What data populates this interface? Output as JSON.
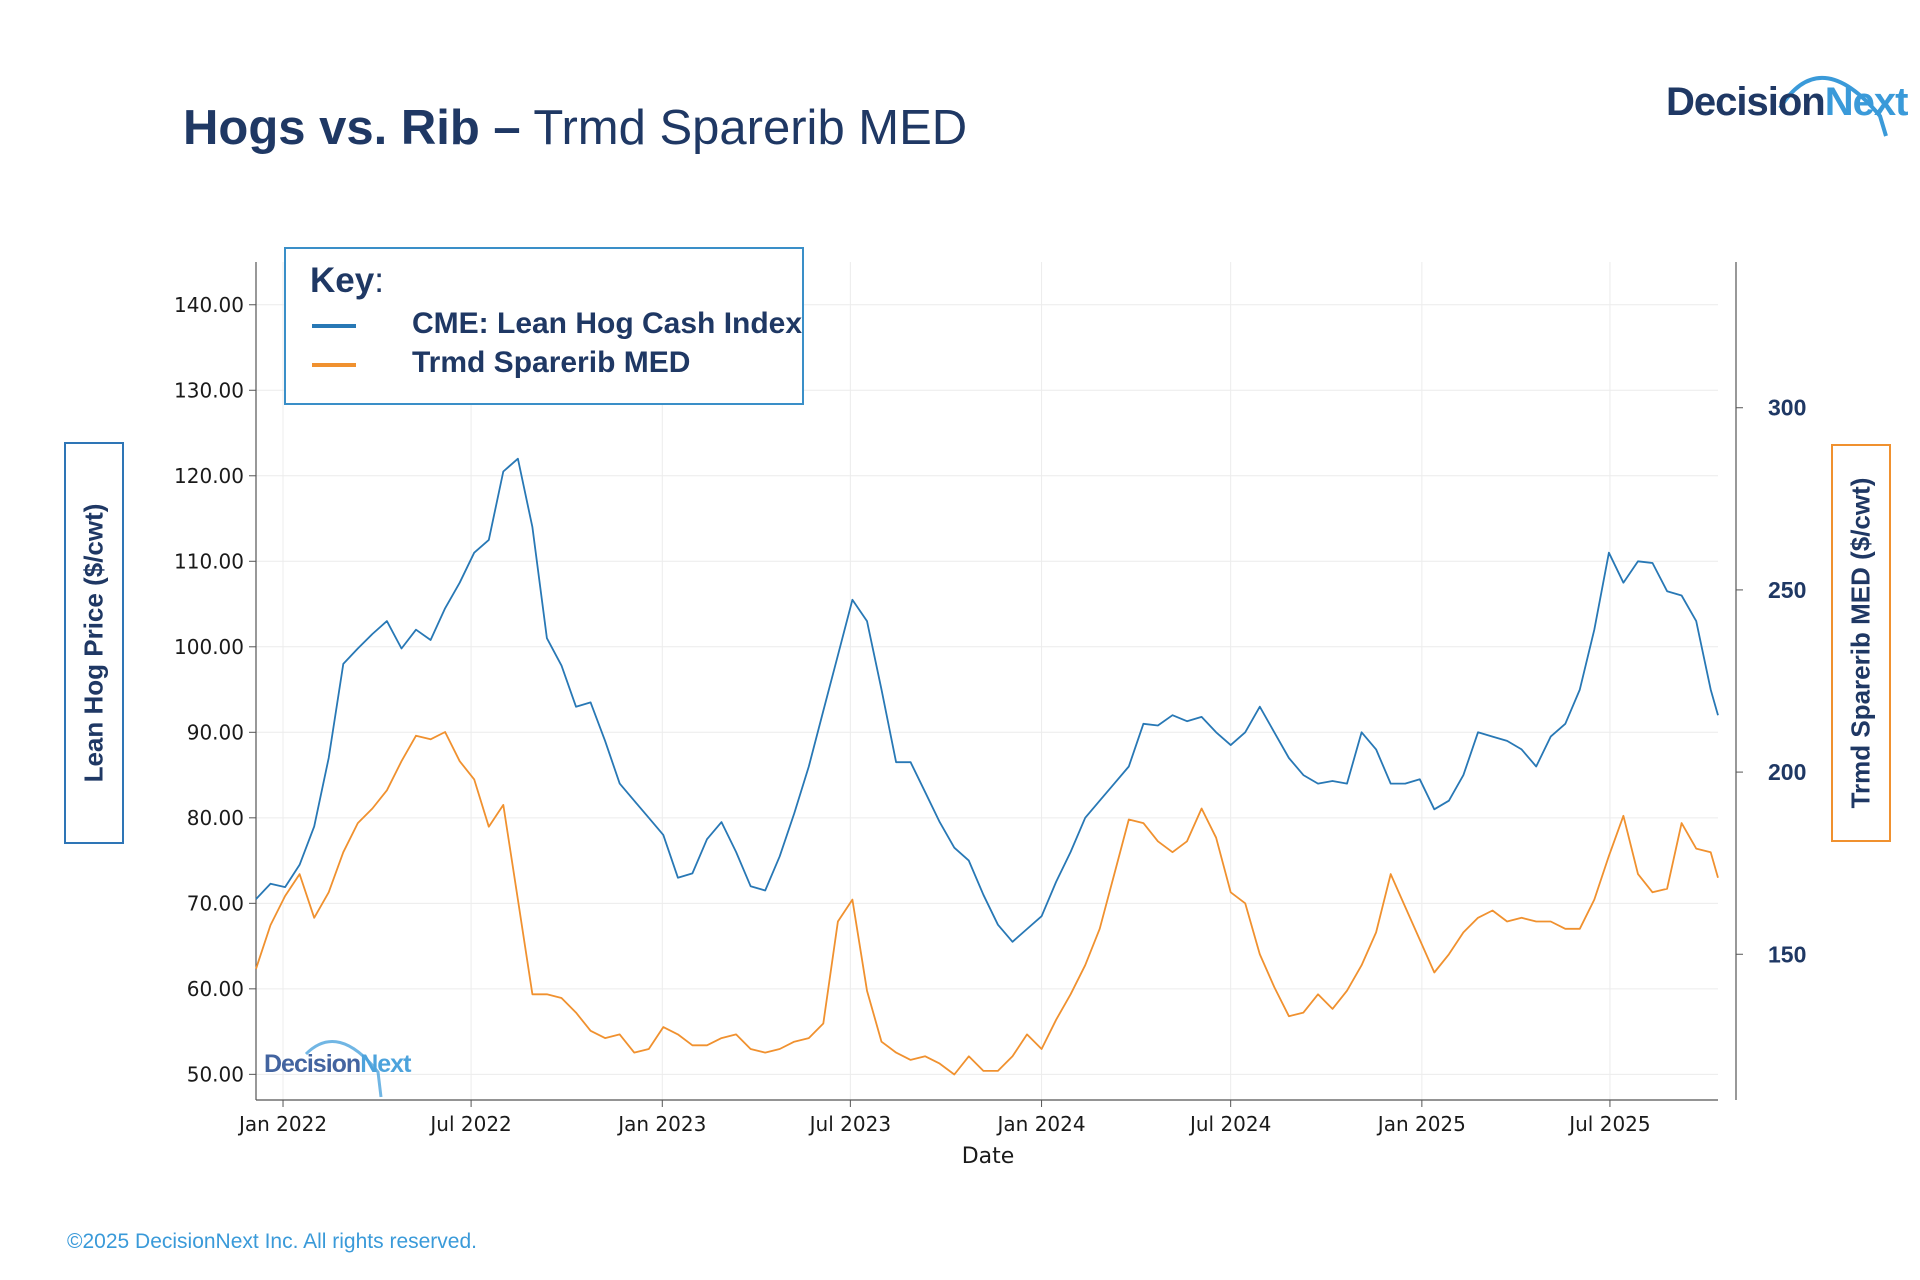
{
  "title": {
    "bold": "Hogs vs. Rib –",
    "regular": "Trmd Sparerib MED"
  },
  "logo": {
    "part1": "Decision",
    "part2": "Next"
  },
  "watermark": {
    "part1": "Decision",
    "part2": "Next"
  },
  "copyright": "©2025 DecisionNext Inc. All rights reserved.",
  "legend": {
    "title": "Key",
    "colon": ":",
    "items": [
      {
        "label": "CME: Lean Hog Cash Index",
        "color": "#2878b5"
      },
      {
        "label": "Trmd Sparerib MED",
        "color": "#f0912f"
      }
    ]
  },
  "axes": {
    "left_label": "Lean Hog Price  ($/cwt)",
    "right_label": "Trmd Sparerib MED  ($/cwt)"
  },
  "chart_data": {
    "type": "line",
    "xlabel": "Date",
    "x_ticks": [
      "Jan 2022",
      "Jul 2022",
      "Jan 2023",
      "Jul 2023",
      "Jan 2024",
      "Jul 2024",
      "Jan 2025",
      "Jul 2025"
    ],
    "x_range": [
      "2021-12-06",
      "2025-10-13"
    ],
    "ylim_left": [
      47,
      145
    ],
    "ylim_right": [
      110,
      340
    ],
    "y_ticks_left": [
      50,
      60,
      70,
      80,
      90,
      100,
      110,
      120,
      130,
      140
    ],
    "y_ticks_left_labels": [
      "50.00",
      "60.00",
      "70.00",
      "80.00",
      "90.00",
      "100.00",
      "110.00",
      "120.00",
      "130.00",
      "140.00"
    ],
    "y_ticks_right": [
      150,
      200,
      250,
      300
    ],
    "y_ticks_right_labels": [
      "150",
      "200",
      "250",
      "300"
    ],
    "grid": true,
    "legend_position": "top-left",
    "series": [
      {
        "name": "CME: Lean Hog Cash Index",
        "axis": "left",
        "color": "#2878b5",
        "points": [
          [
            "2021-12-06",
            70.5
          ],
          [
            "2021-12-20",
            72.3
          ],
          [
            "2022-01-03",
            71.9
          ],
          [
            "2022-01-17",
            74.5
          ],
          [
            "2022-01-31",
            79.0
          ],
          [
            "2022-02-14",
            87.0
          ],
          [
            "2022-02-28",
            98.0
          ],
          [
            "2022-03-14",
            99.8
          ],
          [
            "2022-03-28",
            101.5
          ],
          [
            "2022-04-11",
            103.0
          ],
          [
            "2022-04-25",
            99.8
          ],
          [
            "2022-05-09",
            102.0
          ],
          [
            "2022-05-23",
            100.8
          ],
          [
            "2022-06-06",
            104.5
          ],
          [
            "2022-06-20",
            107.5
          ],
          [
            "2022-07-04",
            111.0
          ],
          [
            "2022-07-18",
            112.5
          ],
          [
            "2022-08-01",
            120.5
          ],
          [
            "2022-08-15",
            122.0
          ],
          [
            "2022-08-29",
            114.0
          ],
          [
            "2022-09-12",
            101.0
          ],
          [
            "2022-09-26",
            97.8
          ],
          [
            "2022-10-10",
            93.0
          ],
          [
            "2022-10-24",
            93.5
          ],
          [
            "2022-11-07",
            89.0
          ],
          [
            "2022-11-21",
            84.0
          ],
          [
            "2022-12-05",
            82.0
          ],
          [
            "2022-12-19",
            80.0
          ],
          [
            "2023-01-02",
            78.0
          ],
          [
            "2023-01-16",
            73.0
          ],
          [
            "2023-01-30",
            73.5
          ],
          [
            "2023-02-13",
            77.5
          ],
          [
            "2023-02-27",
            79.5
          ],
          [
            "2023-03-13",
            76.0
          ],
          [
            "2023-03-27",
            72.0
          ],
          [
            "2023-04-10",
            71.5
          ],
          [
            "2023-04-24",
            75.5
          ],
          [
            "2023-05-08",
            80.5
          ],
          [
            "2023-05-22",
            86.0
          ],
          [
            "2023-06-05",
            92.5
          ],
          [
            "2023-06-19",
            99.0
          ],
          [
            "2023-07-03",
            105.5
          ],
          [
            "2023-07-17",
            103.0
          ],
          [
            "2023-07-31",
            95.0
          ],
          [
            "2023-08-14",
            86.5
          ],
          [
            "2023-08-28",
            86.5
          ],
          [
            "2023-09-11",
            83.0
          ],
          [
            "2023-09-25",
            79.5
          ],
          [
            "2023-10-09",
            76.5
          ],
          [
            "2023-10-23",
            75.0
          ],
          [
            "2023-11-06",
            71.0
          ],
          [
            "2023-11-20",
            67.5
          ],
          [
            "2023-12-04",
            65.5
          ],
          [
            "2023-12-18",
            67.0
          ],
          [
            "2024-01-01",
            68.5
          ],
          [
            "2024-01-15",
            72.5
          ],
          [
            "2024-01-29",
            76.0
          ],
          [
            "2024-02-12",
            80.0
          ],
          [
            "2024-02-26",
            82.0
          ],
          [
            "2024-03-11",
            84.0
          ],
          [
            "2024-03-25",
            86.0
          ],
          [
            "2024-04-08",
            91.0
          ],
          [
            "2024-04-22",
            90.8
          ],
          [
            "2024-05-06",
            92.0
          ],
          [
            "2024-05-20",
            91.3
          ],
          [
            "2024-06-03",
            91.8
          ],
          [
            "2024-06-17",
            90.0
          ],
          [
            "2024-07-01",
            88.5
          ],
          [
            "2024-07-15",
            90.0
          ],
          [
            "2024-07-29",
            93.0
          ],
          [
            "2024-08-12",
            90.0
          ],
          [
            "2024-08-26",
            87.0
          ],
          [
            "2024-09-09",
            85.0
          ],
          [
            "2024-09-23",
            84.0
          ],
          [
            "2024-10-07",
            84.3
          ],
          [
            "2024-10-21",
            84.0
          ],
          [
            "2024-11-04",
            90.0
          ],
          [
            "2024-11-18",
            88.0
          ],
          [
            "2024-12-02",
            84.0
          ],
          [
            "2024-12-16",
            84.0
          ],
          [
            "2024-12-30",
            84.5
          ],
          [
            "2025-01-13",
            81.0
          ],
          [
            "2025-01-27",
            82.0
          ],
          [
            "2025-02-10",
            85.0
          ],
          [
            "2025-02-24",
            90.0
          ],
          [
            "2025-03-10",
            89.5
          ],
          [
            "2025-03-24",
            89.0
          ],
          [
            "2025-04-07",
            88.0
          ],
          [
            "2025-04-21",
            86.0
          ],
          [
            "2025-05-05",
            89.5
          ],
          [
            "2025-05-19",
            91.0
          ],
          [
            "2025-06-02",
            95.0
          ],
          [
            "2025-06-16",
            102.0
          ],
          [
            "2025-06-30",
            111.0
          ],
          [
            "2025-07-14",
            107.5
          ],
          [
            "2025-07-28",
            110.0
          ],
          [
            "2025-08-11",
            109.8
          ],
          [
            "2025-08-25",
            106.5
          ],
          [
            "2025-09-08",
            106.0
          ],
          [
            "2025-09-22",
            103.0
          ],
          [
            "2025-10-06",
            95.0
          ],
          [
            "2025-10-13",
            92.0
          ]
        ]
      },
      {
        "name": "Trmd Sparerib MED",
        "axis": "right",
        "color": "#f0912f",
        "points": [
          [
            "2021-12-06",
            146
          ],
          [
            "2021-12-20",
            158
          ],
          [
            "2022-01-03",
            166
          ],
          [
            "2022-01-17",
            172
          ],
          [
            "2022-01-31",
            160
          ],
          [
            "2022-02-14",
            167
          ],
          [
            "2022-02-28",
            178
          ],
          [
            "2022-03-14",
            186
          ],
          [
            "2022-03-28",
            190
          ],
          [
            "2022-04-11",
            195
          ],
          [
            "2022-04-25",
            203
          ],
          [
            "2022-05-09",
            210
          ],
          [
            "2022-05-23",
            209
          ],
          [
            "2022-06-06",
            211
          ],
          [
            "2022-06-20",
            203
          ],
          [
            "2022-07-04",
            198
          ],
          [
            "2022-07-18",
            185
          ],
          [
            "2022-08-01",
            191
          ],
          [
            "2022-08-15",
            165
          ],
          [
            "2022-08-29",
            139
          ],
          [
            "2022-09-12",
            139
          ],
          [
            "2022-09-26",
            138
          ],
          [
            "2022-10-10",
            134
          ],
          [
            "2022-10-24",
            129
          ],
          [
            "2022-11-07",
            127
          ],
          [
            "2022-11-21",
            128
          ],
          [
            "2022-12-05",
            123
          ],
          [
            "2022-12-19",
            124
          ],
          [
            "2023-01-02",
            130
          ],
          [
            "2023-01-16",
            128
          ],
          [
            "2023-01-30",
            125
          ],
          [
            "2023-02-13",
            125
          ],
          [
            "2023-02-27",
            127
          ],
          [
            "2023-03-13",
            128
          ],
          [
            "2023-03-27",
            124
          ],
          [
            "2023-04-10",
            123
          ],
          [
            "2023-04-24",
            124
          ],
          [
            "2023-05-08",
            126
          ],
          [
            "2023-05-22",
            127
          ],
          [
            "2023-06-05",
            131
          ],
          [
            "2023-06-19",
            159
          ],
          [
            "2023-07-03",
            165
          ],
          [
            "2023-07-17",
            140
          ],
          [
            "2023-07-31",
            126
          ],
          [
            "2023-08-14",
            123
          ],
          [
            "2023-08-28",
            121
          ],
          [
            "2023-09-11",
            122
          ],
          [
            "2023-09-25",
            120
          ],
          [
            "2023-10-09",
            117
          ],
          [
            "2023-10-23",
            122
          ],
          [
            "2023-11-06",
            118
          ],
          [
            "2023-11-20",
            118
          ],
          [
            "2023-12-04",
            122
          ],
          [
            "2023-12-18",
            128
          ],
          [
            "2024-01-01",
            124
          ],
          [
            "2024-01-15",
            132
          ],
          [
            "2024-01-29",
            139
          ],
          [
            "2024-02-12",
            147
          ],
          [
            "2024-02-26",
            157
          ],
          [
            "2024-03-11",
            172
          ],
          [
            "2024-03-25",
            187
          ],
          [
            "2024-04-08",
            186
          ],
          [
            "2024-04-22",
            181
          ],
          [
            "2024-05-06",
            178
          ],
          [
            "2024-05-20",
            181
          ],
          [
            "2024-06-03",
            190
          ],
          [
            "2024-06-17",
            182
          ],
          [
            "2024-07-01",
            167
          ],
          [
            "2024-07-15",
            164
          ],
          [
            "2024-07-29",
            150
          ],
          [
            "2024-08-12",
            141
          ],
          [
            "2024-08-26",
            133
          ],
          [
            "2024-09-09",
            134
          ],
          [
            "2024-09-23",
            139
          ],
          [
            "2024-10-07",
            135
          ],
          [
            "2024-10-21",
            140
          ],
          [
            "2024-11-04",
            147
          ],
          [
            "2024-11-18",
            156
          ],
          [
            "2024-12-02",
            172
          ],
          [
            "2024-12-16",
            163
          ],
          [
            "2024-12-30",
            154
          ],
          [
            "2025-01-13",
            145
          ],
          [
            "2025-01-27",
            150
          ],
          [
            "2025-02-10",
            156
          ],
          [
            "2025-02-24",
            160
          ],
          [
            "2025-03-10",
            162
          ],
          [
            "2025-03-24",
            159
          ],
          [
            "2025-04-07",
            160
          ],
          [
            "2025-04-21",
            159
          ],
          [
            "2025-05-05",
            159
          ],
          [
            "2025-05-19",
            157
          ],
          [
            "2025-06-02",
            157
          ],
          [
            "2025-06-16",
            165
          ],
          [
            "2025-06-30",
            177
          ],
          [
            "2025-07-14",
            188
          ],
          [
            "2025-07-28",
            172
          ],
          [
            "2025-08-11",
            167
          ],
          [
            "2025-08-25",
            168
          ],
          [
            "2025-09-08",
            186
          ],
          [
            "2025-09-22",
            179
          ],
          [
            "2025-10-06",
            178
          ],
          [
            "2025-10-13",
            171
          ]
        ]
      }
    ]
  }
}
